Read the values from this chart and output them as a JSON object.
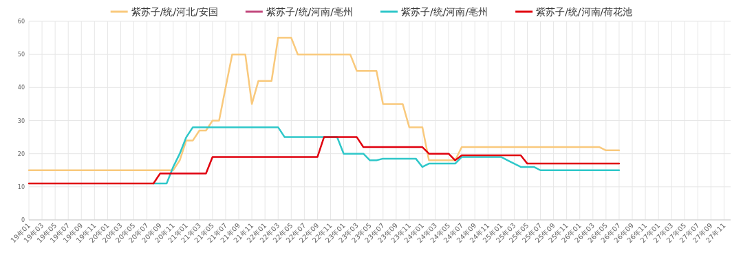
{
  "chart_data": {
    "type": "line",
    "categories": [
      "19年01",
      null,
      "19年03",
      null,
      "19年05",
      null,
      "19年07",
      null,
      "19年09",
      null,
      "19年11",
      null,
      "20年01",
      null,
      "20年03",
      null,
      "20年05",
      null,
      "20年07",
      null,
      "20年09",
      null,
      "20年11",
      null,
      "21年01",
      null,
      "21年03",
      null,
      "21年05",
      null,
      "21年07",
      null,
      "21年09",
      null,
      "21年11",
      null,
      "22年01",
      null,
      "22年03",
      null,
      "22年05",
      null,
      "22年07",
      null,
      "22年09",
      null,
      "22年11",
      null,
      "23年01",
      null,
      "23年03",
      null,
      "23年05",
      null,
      "23年07",
      null,
      "23年09",
      null,
      "23年11",
      null,
      "24年01",
      null,
      "24年03",
      null,
      "24年05",
      null,
      "24年07",
      null,
      "24年09",
      null,
      "24年11",
      null,
      "25年01",
      null,
      "25年03",
      null,
      "25年05",
      null,
      "25年07",
      null,
      "25年09",
      null,
      "25年11",
      null,
      "26年01",
      null,
      "26年03",
      null,
      "26年05",
      null,
      "26年07",
      null,
      "26年09",
      null,
      "26年11",
      null,
      "27年01",
      null,
      "27年03",
      null,
      "27年05",
      null,
      "27年07",
      null,
      "27年09",
      null,
      "27年11",
      null
    ],
    "series": [
      {
        "name": "紫苏子/统/河北/安国",
        "color": "#f9c97c",
        "values": [
          15,
          15,
          15,
          15,
          15,
          15,
          15,
          15,
          15,
          15,
          15,
          15,
          15,
          15,
          15,
          15,
          15,
          15,
          15,
          15,
          15,
          15,
          15,
          18,
          24,
          24,
          27,
          27,
          30,
          30,
          40,
          50,
          50,
          50,
          35,
          42,
          42,
          42,
          55,
          55,
          55,
          50,
          50,
          50,
          50,
          50,
          50,
          50,
          50,
          50,
          45,
          45,
          45,
          45,
          35,
          35,
          35,
          35,
          28,
          28,
          28,
          18,
          18,
          18,
          18,
          18,
          22,
          22,
          22,
          22,
          22,
          22,
          22,
          22,
          22,
          22,
          22,
          22,
          22,
          22,
          22,
          22,
          22,
          22,
          22,
          22,
          22,
          22,
          21,
          21,
          21,
          null,
          null,
          null,
          null,
          null,
          null,
          null,
          null,
          null,
          null,
          null,
          null,
          null,
          null,
          null,
          null,
          null
        ]
      },
      {
        "name": "紫苏子/统/河南/亳州",
        "color": "#c2487d",
        "values": [
          null,
          null,
          null,
          null,
          null,
          null,
          null,
          null,
          null,
          null,
          null,
          null,
          null,
          null,
          null,
          null,
          null,
          null,
          null,
          null,
          null,
          null,
          null,
          null,
          null,
          null,
          null,
          null,
          null,
          null,
          null,
          null,
          null,
          null,
          null,
          null,
          null,
          null,
          null,
          null,
          null,
          null,
          null,
          null,
          null,
          null,
          null,
          null,
          null,
          null,
          null,
          null,
          null,
          null,
          null,
          null,
          null,
          null,
          null,
          null,
          null,
          null,
          null,
          null,
          null,
          null,
          null,
          null,
          null,
          null,
          null,
          null,
          null,
          null,
          null,
          null,
          null,
          null,
          null,
          null,
          null,
          null,
          null,
          null,
          null,
          null,
          null,
          null,
          null,
          null,
          null,
          null,
          null,
          null,
          null,
          null,
          null,
          null,
          null,
          null,
          null,
          null,
          null,
          null,
          null,
          null,
          null,
          null
        ]
      },
      {
        "name": "紫苏子/统/河南/亳州",
        "color": "#2ec7c9",
        "values": [
          null,
          null,
          null,
          null,
          null,
          null,
          null,
          null,
          null,
          null,
          null,
          null,
          null,
          null,
          null,
          null,
          null,
          null,
          null,
          11,
          11,
          11,
          16,
          20,
          25,
          28,
          28,
          28,
          28,
          28,
          28,
          28,
          28,
          28,
          28,
          28,
          28,
          28,
          28,
          25,
          25,
          25,
          25,
          25,
          25,
          25,
          25,
          25,
          20,
          20,
          20,
          20,
          18,
          18,
          18.5,
          18.5,
          18.5,
          18.5,
          18.5,
          18.5,
          16,
          17,
          17,
          17,
          17,
          17,
          19,
          19,
          19,
          19,
          19,
          19,
          19,
          18,
          17,
          16,
          16,
          16,
          15,
          15,
          15,
          15,
          15,
          15,
          15,
          15,
          15,
          15,
          15,
          15,
          15,
          null,
          null,
          null,
          null,
          null,
          null,
          null,
          null,
          null,
          null,
          null,
          null,
          null,
          null,
          null,
          null,
          null
        ]
      },
      {
        "name": "紫苏子/统/河南/荷花池",
        "color": "#e0000e",
        "values": [
          11,
          11,
          11,
          11,
          11,
          11,
          11,
          11,
          11,
          11,
          11,
          11,
          11,
          11,
          11,
          11,
          11,
          11,
          11,
          11,
          14,
          14,
          14,
          14,
          14,
          14,
          14,
          14,
          19,
          19,
          19,
          19,
          19,
          19,
          19,
          19,
          19,
          19,
          19,
          19,
          19,
          19,
          19,
          19,
          19,
          25,
          25,
          25,
          25,
          25,
          25,
          22,
          22,
          22,
          22,
          22,
          22,
          22,
          22,
          22,
          22,
          20,
          20,
          20,
          20,
          18,
          19.5,
          19.5,
          19.5,
          19.5,
          19.5,
          19.5,
          19.5,
          19.5,
          19.5,
          19.5,
          17,
          17,
          17,
          17,
          17,
          17,
          17,
          17,
          17,
          17,
          17,
          17,
          17,
          17,
          17,
          null,
          null,
          null,
          null,
          null,
          null,
          null,
          null,
          null,
          null,
          null,
          null,
          null,
          null,
          null,
          null,
          null
        ]
      }
    ],
    "ylim": [
      0,
      60
    ],
    "yticks": [
      0,
      10,
      20,
      30,
      40,
      50,
      60
    ],
    "grid": true,
    "legend": "top",
    "marker": "none",
    "line_style": "solid"
  }
}
